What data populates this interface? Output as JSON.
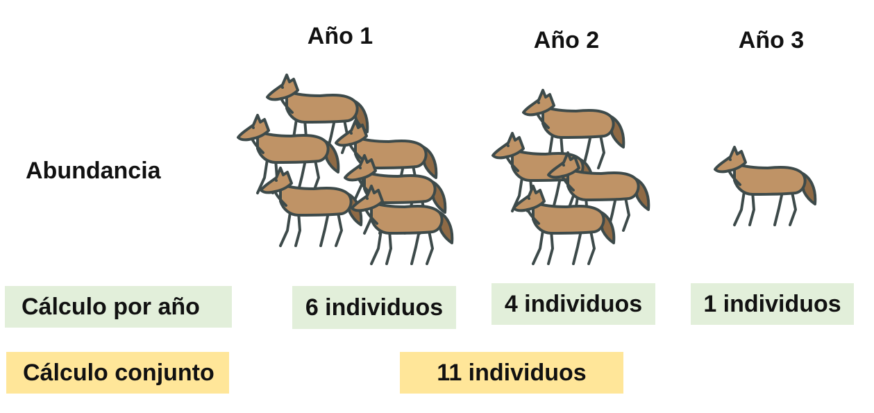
{
  "years": [
    {
      "title": "Año 1",
      "count": 6,
      "calc_label": "6 individuos"
    },
    {
      "title": "Año 2",
      "count": 4,
      "calc_label": "4 individuos"
    },
    {
      "title": "Año 3",
      "count": 1,
      "calc_label": "1 individuos"
    }
  ],
  "labels": {
    "abundance": "Abundancia",
    "per_year": "Cálculo por año",
    "combined": "Cálculo conjunto"
  },
  "combined_total": "11 individuos",
  "colors": {
    "wolf_body": "#bf9366",
    "wolf_outline": "#3d4a4a",
    "wolf_shadow": "#8f6a45",
    "per_year_box": "#e2efda",
    "combined_box": "#ffe699"
  },
  "icon": "wolf-icon"
}
